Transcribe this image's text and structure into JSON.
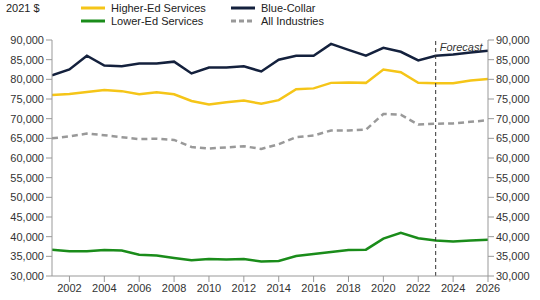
{
  "chart_data": {
    "type": "line",
    "y_label": "2021 $",
    "x": [
      2001,
      2002,
      2003,
      2004,
      2005,
      2006,
      2007,
      2008,
      2009,
      2010,
      2011,
      2012,
      2013,
      2014,
      2015,
      2016,
      2017,
      2018,
      2019,
      2020,
      2021,
      2022,
      2023,
      2024,
      2025,
      2026
    ],
    "xlim": [
      2001,
      2026
    ],
    "xticks": [
      2002,
      2004,
      2006,
      2008,
      2010,
      2012,
      2014,
      2016,
      2018,
      2020,
      2022,
      2024,
      2026
    ],
    "ylim": [
      30000,
      90000
    ],
    "yticks": [
      {
        "value": 30000,
        "label": "30,000"
      },
      {
        "value": 35000,
        "label": "35,000"
      },
      {
        "value": 40000,
        "label": "40,000"
      },
      {
        "value": 45000,
        "label": "45,000"
      },
      {
        "value": 50000,
        "label": "50,000"
      },
      {
        "value": 55000,
        "label": "55,000"
      },
      {
        "value": 60000,
        "label": "60,000"
      },
      {
        "value": 65000,
        "label": "65,000"
      },
      {
        "value": 70000,
        "label": "70,000"
      },
      {
        "value": 75000,
        "label": "75,000"
      },
      {
        "value": 80000,
        "label": "80,000"
      },
      {
        "value": 85000,
        "label": "85,000"
      },
      {
        "value": 90000,
        "label": "90,000"
      }
    ],
    "grid": false,
    "legend": "top",
    "annotations": [
      {
        "text": "Forecast",
        "x": 2023
      }
    ],
    "series": [
      {
        "name": "Higher-Ed Services",
        "color": "#f5c518",
        "line_style": "solid",
        "values": [
          76000,
          76300,
          76800,
          77300,
          77000,
          76200,
          76700,
          76200,
          74500,
          73600,
          74200,
          74600,
          73800,
          74700,
          77500,
          77700,
          79100,
          79200,
          79100,
          82500,
          81800,
          79100,
          79000,
          79000,
          79700,
          80100
        ]
      },
      {
        "name": "Blue-Collar",
        "color": "#14213d",
        "line_style": "solid",
        "values": [
          81000,
          82500,
          86000,
          83500,
          83300,
          84000,
          84000,
          84500,
          81500,
          83000,
          83000,
          83300,
          82000,
          85000,
          86000,
          86000,
          89000,
          87500,
          86000,
          88000,
          87000,
          84800,
          86000,
          86300,
          86800,
          87300
        ]
      },
      {
        "name": "Lower-Ed Services",
        "color": "#1a8c1a",
        "line_style": "solid",
        "values": [
          36700,
          36300,
          36300,
          36600,
          36500,
          35400,
          35200,
          34600,
          34000,
          34300,
          34200,
          34300,
          33700,
          33800,
          35100,
          35600,
          36100,
          36600,
          36700,
          39500,
          41000,
          39600,
          39000,
          38800,
          39000,
          39200
        ]
      },
      {
        "name": "All Industries",
        "color": "#999999",
        "line_style": "dashed",
        "values": [
          65000,
          65500,
          66200,
          65800,
          65300,
          64800,
          64900,
          64600,
          62800,
          62400,
          62700,
          63000,
          62300,
          63500,
          65300,
          65700,
          67000,
          67000,
          67200,
          71200,
          71000,
          68500,
          68700,
          68800,
          69200,
          69600
        ]
      }
    ]
  }
}
